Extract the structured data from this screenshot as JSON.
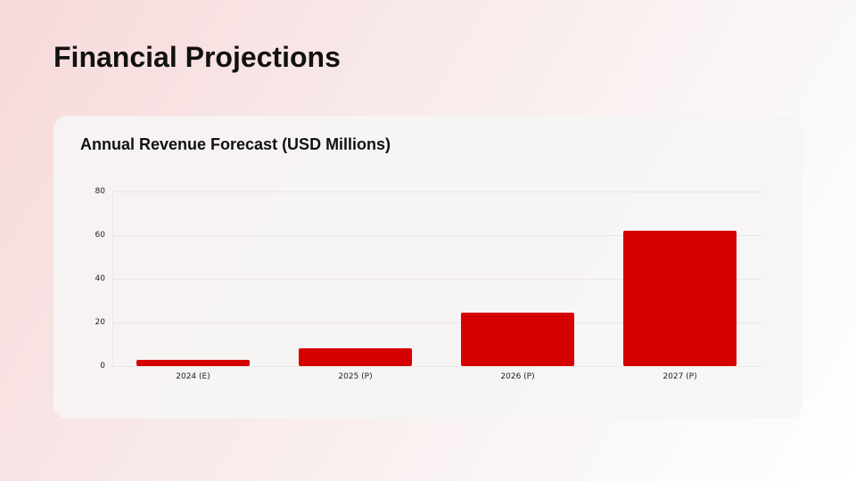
{
  "page": {
    "title": "Financial Projections"
  },
  "chart_data": {
    "type": "bar",
    "title": "Annual Revenue Forecast (USD Millions)",
    "categories": [
      "2024 (E)",
      "2025 (P)",
      "2026 (P)",
      "2027 (P)"
    ],
    "values": [
      3,
      8.2,
      24.5,
      62
    ],
    "xlabel": "",
    "ylabel": "",
    "ylim": [
      0,
      80
    ],
    "yticks": [
      "80",
      "60",
      "40",
      "20",
      "0"
    ],
    "grid": true,
    "legend": null,
    "bar_color": "#d50000"
  }
}
